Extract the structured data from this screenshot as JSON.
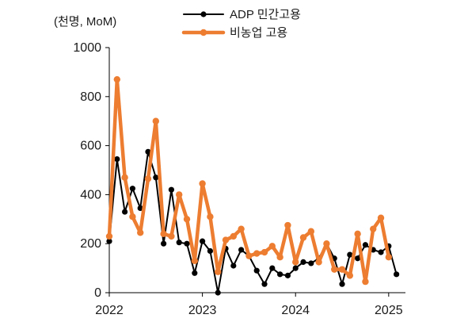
{
  "chart_data": {
    "type": "line",
    "ylabel": "(천명, MoM)",
    "ylim": [
      0,
      1000
    ],
    "yticks": [
      0,
      200,
      400,
      600,
      800,
      1000
    ],
    "xticks": [
      "2022",
      "2023",
      "2024",
      "2025"
    ],
    "x_start": "2022-01",
    "grid": false,
    "legend_position": "top-center",
    "series": [
      {
        "name": "ADP 민간고용",
        "color": "#000000",
        "marker": "circle",
        "values": [
          210,
          545,
          330,
          425,
          345,
          575,
          470,
          200,
          420,
          205,
          200,
          80,
          210,
          170,
          0,
          180,
          110,
          175,
          150,
          90,
          35,
          100,
          75,
          70,
          100,
          125,
          120,
          140,
          200,
          140,
          35,
          155,
          140,
          195,
          175,
          165,
          190,
          75
        ]
      },
      {
        "name": "비농업 고용",
        "color": "#ED7D31",
        "marker": "circle",
        "values": [
          230,
          870,
          470,
          310,
          245,
          465,
          700,
          240,
          230,
          400,
          300,
          130,
          445,
          310,
          85,
          215,
          230,
          260,
          150,
          160,
          165,
          190,
          145,
          275,
          125,
          225,
          250,
          125,
          200,
          95,
          95,
          70,
          240,
          45,
          260,
          305,
          145
        ]
      }
    ]
  }
}
